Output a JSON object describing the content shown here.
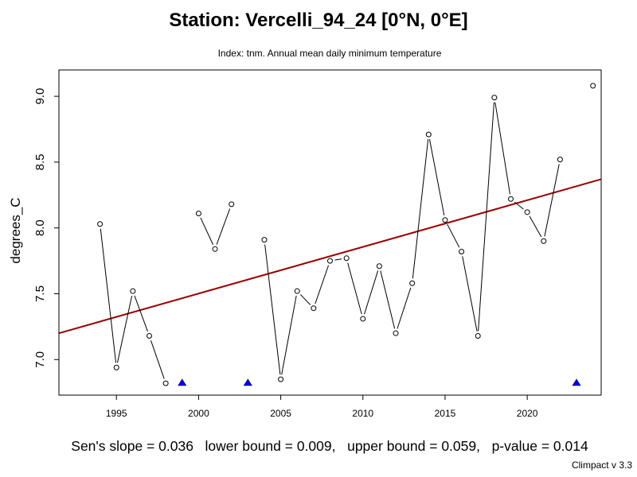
{
  "chart_data": {
    "type": "line",
    "title": "Station: Vercelli_94_24 [0°N, 0°E]",
    "subtitle": "Index: tnm. Annual mean daily minimum temperature",
    "xlabel": "",
    "ylabel": "degrees_C",
    "xlim": [
      1991.5,
      2024.5
    ],
    "ylim": [
      6.73,
      9.2
    ],
    "x_ticks": [
      1995,
      2000,
      2005,
      2010,
      2015,
      2020
    ],
    "y_ticks": [
      7.0,
      7.5,
      8.0,
      8.5,
      9.0
    ],
    "y_tick_labels": [
      "7.0",
      "7.5",
      "8.0",
      "8.5",
      "9.0"
    ],
    "grid": false,
    "series": [
      {
        "x": [
          1994,
          1995,
          1996,
          1997,
          1998,
          1999,
          2000,
          2001,
          2002,
          2003,
          2004,
          2005,
          2006,
          2007,
          2008,
          2009,
          2010,
          2011,
          2012,
          2013,
          2014,
          2015,
          2016,
          2017,
          2018,
          2019,
          2020,
          2021,
          2022,
          2023,
          2024
        ],
        "y": [
          8.03,
          6.94,
          7.52,
          7.18,
          6.82,
          null,
          8.11,
          7.84,
          8.18,
          null,
          7.91,
          6.85,
          7.52,
          7.39,
          7.75,
          7.77,
          7.31,
          7.71,
          7.2,
          7.58,
          8.71,
          8.06,
          7.82,
          7.18,
          8.99,
          8.22,
          8.12,
          7.9,
          8.52,
          null,
          9.08
        ],
        "color": "#000000"
      }
    ],
    "missing_years": [
      1999,
      2003,
      2023
    ],
    "missing_marker_color": "#0000ff",
    "trend": {
      "start": [
        1991.5,
        7.2
      ],
      "end": [
        2024.5,
        8.37
      ],
      "color": "#990000"
    }
  },
  "footer": {
    "slope": "Sen's slope = 0.036",
    "lower": "lower bound = 0.009,",
    "upper": "upper bound = 0.059,",
    "pvalue": "p-value = 0.014"
  },
  "credit": "Climpact v 3.3"
}
